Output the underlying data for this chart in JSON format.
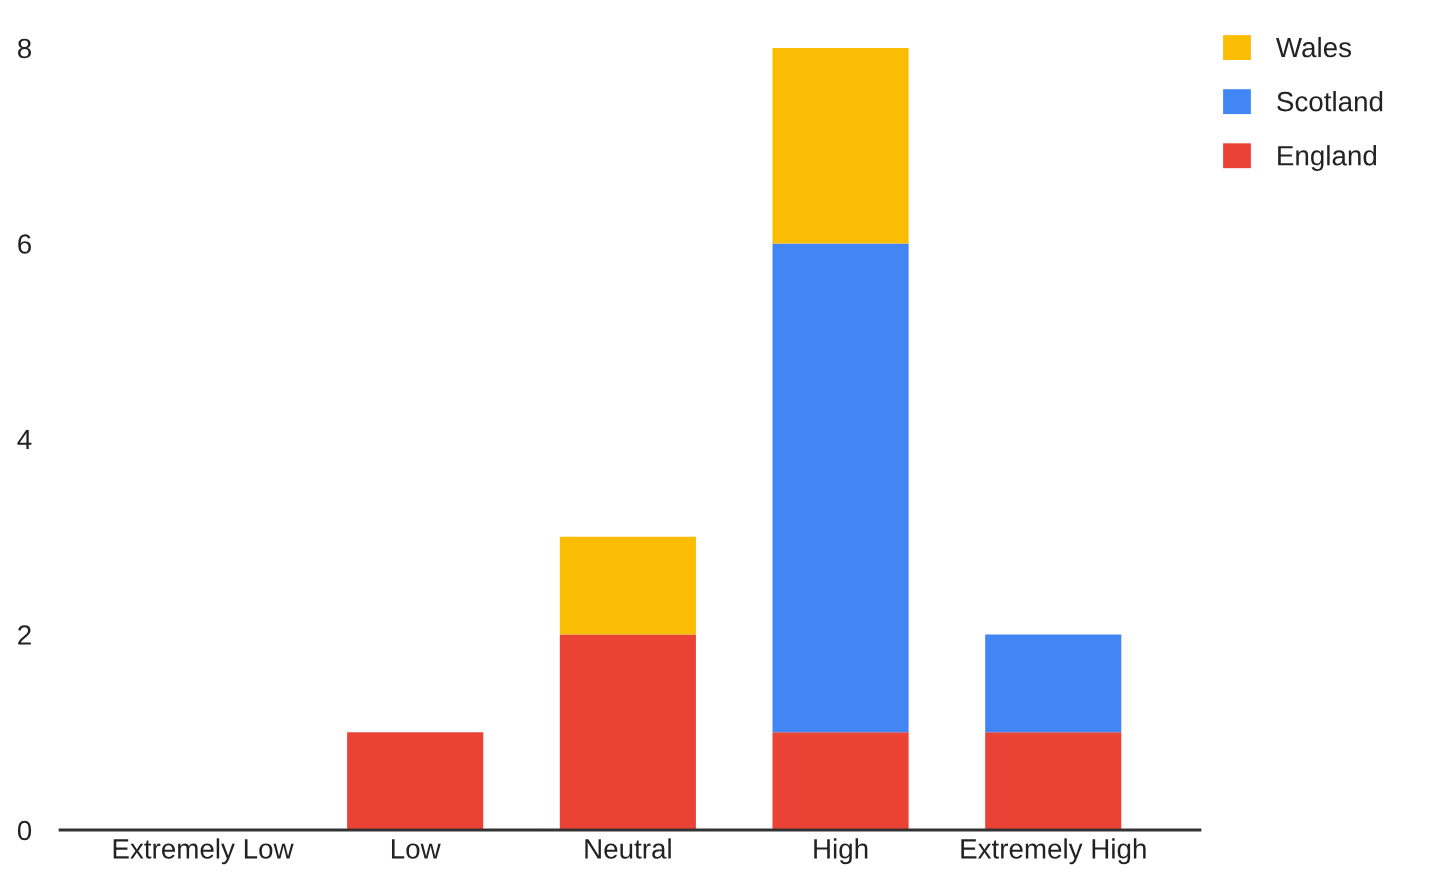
{
  "chart_data": {
    "type": "bar",
    "stacked": true,
    "categories": [
      "Extremely Low",
      "Low",
      "Neutral",
      "High",
      "Extremely High"
    ],
    "series": [
      {
        "name": "England",
        "color": "#ea4335",
        "values": [
          0,
          1,
          2,
          1,
          1
        ]
      },
      {
        "name": "Scotland",
        "color": "#4285f4",
        "values": [
          0,
          0,
          0,
          5,
          1
        ]
      },
      {
        "name": "Wales",
        "color": "#fbbc04",
        "values": [
          0,
          0,
          1,
          2,
          0
        ]
      }
    ],
    "ylim": [
      0,
      8
    ],
    "yticks": [
      0,
      2,
      4,
      6,
      8
    ],
    "grid": false,
    "legend": "top right"
  }
}
